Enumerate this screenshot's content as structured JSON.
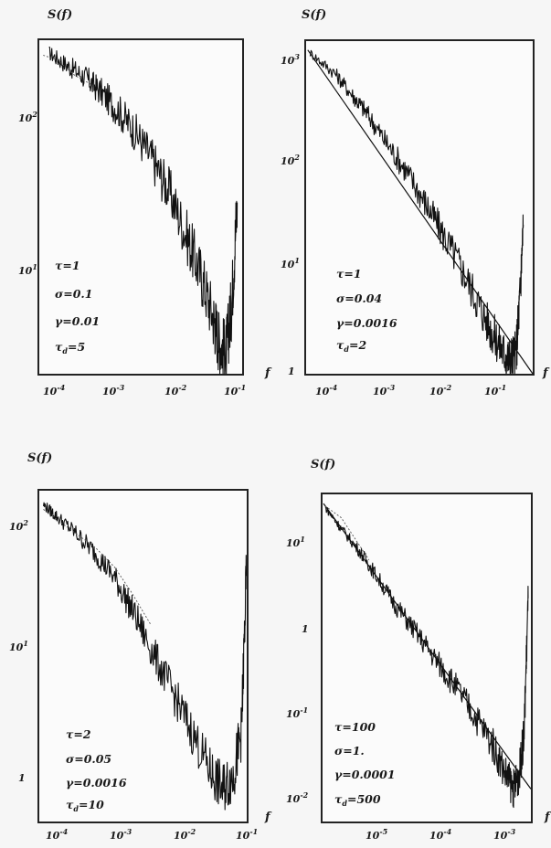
{
  "chart_data": [
    {
      "type": "line",
      "panel": "top-left",
      "y_axis_label": "S(f)",
      "x_axis_label": "f",
      "x_ticks": [
        "10-4",
        "10-3",
        "10-2",
        "10-1"
      ],
      "y_ticks": [
        "102",
        "101"
      ],
      "x_scale": "log",
      "y_scale": "log",
      "xlim": [
        0.0001,
        0.25
      ],
      "ylim": [
        2.3,
        600
      ],
      "params": [
        "τ=1",
        "σ=0.1",
        "γ=0.01",
        "τd=5"
      ],
      "series": [
        {
          "style": "solid-noisy",
          "x": [
            0.00015,
            0.0003,
            0.0006,
            0.001,
            0.002,
            0.004,
            0.008,
            0.015,
            0.03,
            0.05,
            0.08,
            0.1,
            0.13,
            0.16,
            0.2
          ],
          "y": [
            480,
            390,
            320,
            260,
            190,
            130,
            80,
            48,
            22,
            12,
            6,
            4,
            3.3,
            7,
            40
          ]
        },
        {
          "style": "dashed",
          "x": [
            0.00012,
            0.0002,
            0.0004,
            0.0008
          ],
          "y": [
            460,
            430,
            330,
            280
          ]
        }
      ]
    },
    {
      "type": "line",
      "panel": "top-right",
      "y_axis_label": "S(f)",
      "x_axis_label": "f",
      "x_ticks": [
        "10-4",
        "10-3",
        "10-2",
        "10-1"
      ],
      "y_ticks": [
        "103",
        "102",
        "101",
        "1"
      ],
      "x_scale": "log",
      "y_scale": "log",
      "xlim": [
        0.0001,
        0.5
      ],
      "ylim": [
        1,
        2000
      ],
      "params": [
        "τ=1",
        "σ=0.04",
        "γ=0.0016",
        "τd=2"
      ],
      "series": [
        {
          "style": "solid-noisy",
          "x": [
            0.00012,
            0.0003,
            0.0006,
            0.001,
            0.002,
            0.004,
            0.008,
            0.015,
            0.03,
            0.06,
            0.1,
            0.15,
            0.2,
            0.26,
            0.3,
            0.34
          ],
          "y": [
            1500,
            950,
            560,
            380,
            200,
            110,
            55,
            28,
            13,
            5.5,
            2.8,
            1.8,
            1.4,
            1.6,
            6,
            30
          ]
        },
        {
          "style": "fit",
          "x": [
            0.00011,
            0.5
          ],
          "y": [
            1600,
            1
          ]
        }
      ]
    },
    {
      "type": "line",
      "panel": "bottom-left",
      "y_axis_label": "S(f)",
      "x_axis_label": "f",
      "x_ticks": [
        "10-4",
        "10-3",
        "10-2",
        "10-1"
      ],
      "y_ticks": [
        "102",
        "101",
        "1"
      ],
      "x_scale": "log",
      "y_scale": "log",
      "xlim": [
        5e-05,
        0.1
      ],
      "ylim": [
        0.3,
        300
      ],
      "params": [
        "τ=2",
        "σ=0.05",
        "γ=0.0016",
        "τd=10"
      ],
      "series": [
        {
          "style": "solid-noisy",
          "x": [
            6e-05,
            0.0001,
            0.0002,
            0.0004,
            0.0008,
            0.0015,
            0.003,
            0.006,
            0.012,
            0.025,
            0.04,
            0.06,
            0.08,
            0.095
          ],
          "y": [
            220,
            170,
            120,
            80,
            48,
            25,
            11,
            5,
            2.2,
            0.9,
            0.6,
            0.8,
            2,
            50
          ]
        },
        {
          "style": "dashed",
          "x": [
            6e-05,
            0.0001,
            0.0002,
            0.0004,
            0.0008,
            0.0015,
            0.003
          ],
          "y": [
            200,
            160,
            120,
            90,
            60,
            35,
            18
          ]
        }
      ]
    },
    {
      "type": "line",
      "panel": "bottom-right",
      "y_axis_label": "S(f)",
      "x_axis_label": "f",
      "x_ticks": [
        "10-5",
        "10-4",
        "10-3"
      ],
      "y_ticks": [
        "101",
        "1",
        "10-1",
        "10-2"
      ],
      "x_scale": "log",
      "y_scale": "log",
      "xlim": [
        1.5e-06,
        0.0025
      ],
      "ylim": [
        0.005,
        60
      ],
      "params": [
        "τ=100",
        "σ=1.",
        "γ=0.0001",
        "τd=500"
      ],
      "series": [
        {
          "style": "solid-noisy",
          "x": [
            1.7e-06,
            3e-06,
            6e-06,
            1e-05,
            2e-05,
            4e-05,
            8e-05,
            0.00015,
            0.0003,
            0.0006,
            0.001,
            0.0013,
            0.0016,
            0.0019,
            0.0022
          ],
          "y": [
            40,
            22,
            11,
            6,
            2.5,
            1.2,
            0.55,
            0.28,
            0.12,
            0.05,
            0.02,
            0.013,
            0.02,
            0.06,
            3
          ]
        },
        {
          "style": "fit",
          "x": [
            1.6e-06,
            0.0025
          ],
          "y": [
            45,
            0.013
          ]
        },
        {
          "style": "dashed",
          "x": [
            1.7e-06,
            3e-06,
            5e-06,
            8e-06
          ],
          "y": [
            42,
            30,
            16,
            9
          ]
        }
      ]
    }
  ]
}
